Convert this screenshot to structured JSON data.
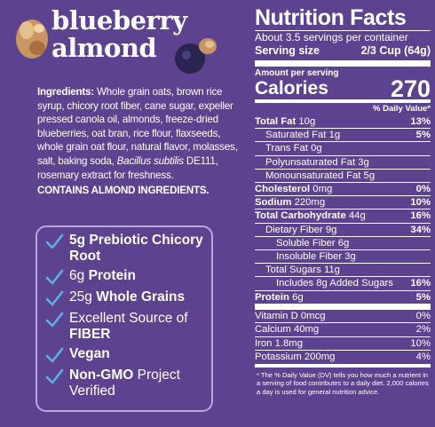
{
  "product": {
    "title_lines": [
      "blueberry",
      "almond"
    ]
  },
  "ingredients": {
    "label": "Ingredients:",
    "text_before": "Whole grain oats, brown rice syrup, chicory root fiber, cane sugar, expeller pressed canola oil, almonds, freeze-dried blueberries, oat bran, rice flour, flaxseeds, whole grain oat flour, natural flavor, molasses, salt, baking soda,",
    "italic": "Bacillus subtilis",
    "text_after": "DE111, rosemary extract for freshness.",
    "allergen": "CONTAINS ALMOND INGREDIENTS."
  },
  "claims": [
    [
      {
        "text": "5g Prebiotic Chicory Root",
        "bold": true
      }
    ],
    [
      {
        "text": "6g",
        "bold": false
      },
      {
        "text": "Protein",
        "bold": true
      }
    ],
    [
      {
        "text": "25g",
        "bold": false
      },
      {
        "text": "Whole Grains",
        "bold": true
      }
    ],
    [
      {
        "text": "Excellent Source of",
        "bold": false
      },
      {
        "text": "FIBER",
        "bold": true
      }
    ],
    [
      {
        "text": "Vegan",
        "bold": true
      }
    ],
    [
      {
        "text": "Non-GMO",
        "bold": true
      },
      {
        "text": "Project Verified",
        "bold": false
      }
    ]
  ],
  "nutrition": {
    "title": "Nutrition Facts",
    "servings": "About 3.5 servings per container",
    "serving_size_label": "Serving size",
    "serving_size": "2/3 Cup (64g)",
    "amount_label": "Amount per serving",
    "calories_label": "Calories",
    "calories": "270",
    "dv_header": "% Daily Value*",
    "rows": [
      {
        "name": "Total Fat",
        "amount": "10g",
        "dv": "13%",
        "bold": true,
        "indent": 0
      },
      {
        "name": "Saturated Fat",
        "amount": "1g",
        "dv": "5%",
        "bold": false,
        "indent": 1
      },
      {
        "name": "Trans Fat",
        "amount": "0g",
        "bold": false,
        "indent": 1
      },
      {
        "name": "Polyunsaturated Fat",
        "amount": "3g",
        "bold": false,
        "indent": 1
      },
      {
        "name": "Monounsaturated Fat",
        "amount": "5g",
        "bold": false,
        "indent": 1
      },
      {
        "name": "Cholesterol",
        "amount": "0mg",
        "dv": "0%",
        "bold": true,
        "indent": 0
      },
      {
        "name": "Sodium",
        "amount": "220mg",
        "dv": "10%",
        "bold": true,
        "indent": 0
      },
      {
        "name": "Total Carbohydrate",
        "amount": "44g",
        "dv": "16%",
        "bold": true,
        "indent": 0
      },
      {
        "name": "Dietary Fiber",
        "amount": "9g",
        "dv": "34%",
        "bold": false,
        "indent": 1
      },
      {
        "name": "Soluble Fiber",
        "amount": "6g",
        "bold": false,
        "indent": 2
      },
      {
        "name": "Insoluble Fiber",
        "amount": "3g",
        "bold": false,
        "indent": 2
      },
      {
        "name": "Total Sugars",
        "amount": "11g",
        "bold": false,
        "indent": 1
      },
      {
        "name": "Includes 8g Added Sugars",
        "dv": "16%",
        "bold": false,
        "indent": 2
      },
      {
        "name": "Protein",
        "amount": "6g",
        "dv": "5%",
        "bold": true,
        "indent": 0
      }
    ],
    "vitamins": [
      {
        "name": "Vitamin D 0mcg",
        "dv": "0%"
      },
      {
        "name": "Calcium 40mg",
        "dv": "2%"
      },
      {
        "name": "Iron 1.8mg",
        "dv": "10%"
      },
      {
        "name": "Potassium 200mg",
        "dv": "4%"
      }
    ],
    "footnote": "* The % Daily Value (DV) tells you how much a nutrient in a serving of food contributes to a daily diet. 2,000 calories a day is used for general nutrition advice."
  }
}
